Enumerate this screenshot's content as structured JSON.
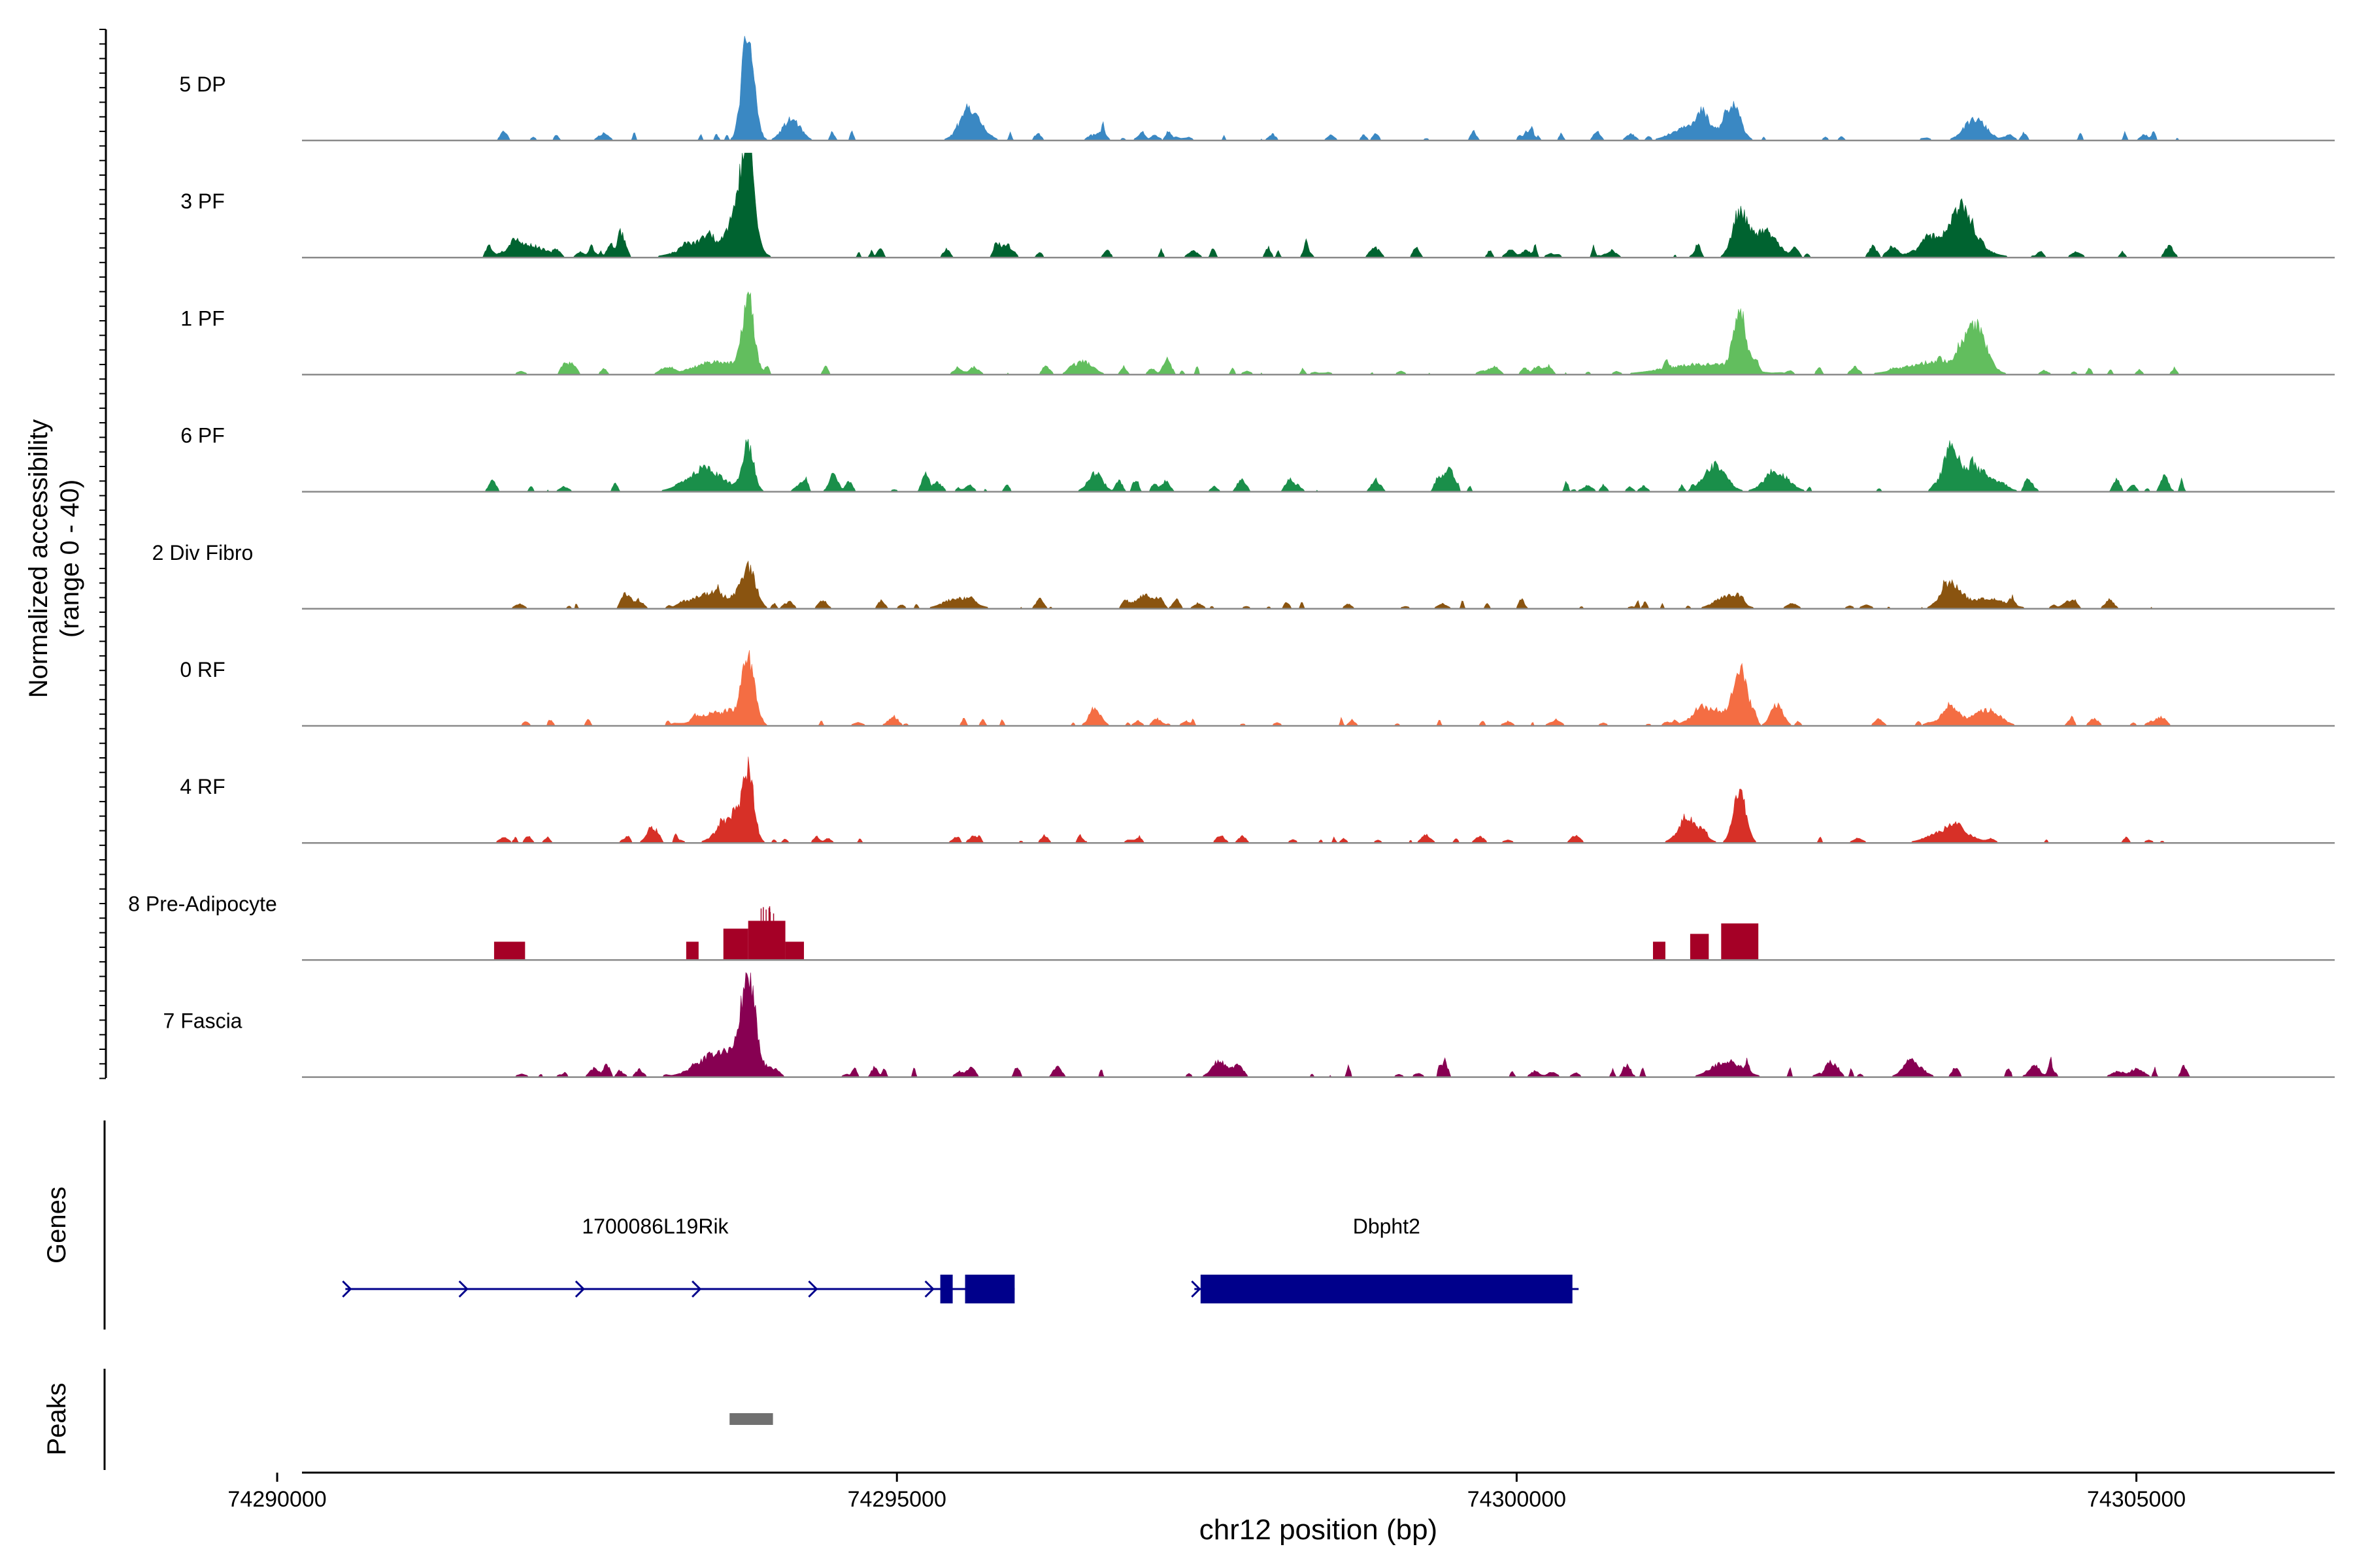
{
  "chart_data": {
    "type": "area",
    "title": "",
    "ylabel_line1": "Normalized accessibility",
    "ylabel_line2": "(range 0 - 40)",
    "xlabel": "chr12 position (bp)",
    "xlim": [
      74290200,
      74306600
    ],
    "ylim": [
      0,
      40
    ],
    "xticks": [
      {
        "value": 74290000,
        "label": "74290000"
      },
      {
        "value": 74295000,
        "label": "74295000"
      },
      {
        "value": 74300000,
        "label": "74300000"
      },
      {
        "value": 74305000,
        "label": "74305000"
      }
    ],
    "tracks": [
      {
        "name": "5 DP",
        "color": "#3A88C3",
        "noise": 0.18,
        "seed": 11,
        "peaks": [
          [
            74293800,
            38,
            50
          ],
          [
            74294150,
            8,
            70
          ],
          [
            74295600,
            10,
            90
          ],
          [
            74301750,
            12,
            60
          ],
          [
            74301450,
            7,
            150
          ],
          [
            74303700,
            8,
            90
          ]
        ]
      },
      {
        "name": "3 PF",
        "color": "#006330",
        "noise": 0.22,
        "seed": 23,
        "peaks": [
          [
            74293800,
            28,
            45
          ],
          [
            74293750,
            20,
            80
          ],
          [
            74293500,
            6,
            200
          ],
          [
            74302000,
            10,
            100
          ],
          [
            74301800,
            15,
            60
          ],
          [
            74303600,
            12,
            80
          ],
          [
            74303500,
            8,
            200
          ],
          [
            74292000,
            5,
            150
          ]
        ]
      },
      {
        "name": "1 PF",
        "color": "#62BE5E",
        "noise": 0.16,
        "seed": 37,
        "peaks": [
          [
            74293800,
            28,
            45
          ],
          [
            74293550,
            5,
            180
          ],
          [
            74301800,
            22,
            50
          ],
          [
            74301500,
            4,
            300
          ],
          [
            74303700,
            17,
            80
          ],
          [
            74303400,
            5,
            250
          ],
          [
            74296500,
            5,
            80
          ]
        ]
      },
      {
        "name": "6 PF",
        "color": "#1A8F4A",
        "noise": 0.24,
        "seed": 41,
        "peaks": [
          [
            74293800,
            17,
            45
          ],
          [
            74293450,
            8,
            150
          ],
          [
            74296600,
            7,
            60
          ],
          [
            74301600,
            10,
            90
          ],
          [
            74302100,
            7,
            100
          ],
          [
            74303500,
            14,
            60
          ],
          [
            74303700,
            7,
            150
          ]
        ]
      },
      {
        "name": "2 Div Fibro",
        "color": "#8A5410",
        "noise": 0.16,
        "seed": 53,
        "peaks": [
          [
            74293800,
            15,
            60
          ],
          [
            74293500,
            6,
            150
          ],
          [
            74295500,
            4,
            120
          ],
          [
            74297000,
            5,
            80
          ],
          [
            74301700,
            5,
            100
          ],
          [
            74303500,
            9,
            80
          ],
          [
            74303800,
            4,
            150
          ]
        ]
      },
      {
        "name": "0 RF",
        "color": "#F46D43",
        "noise": 0.14,
        "seed": 67,
        "peaks": [
          [
            74293800,
            26,
            50
          ],
          [
            74293550,
            5,
            150
          ],
          [
            74296600,
            6,
            50
          ],
          [
            74301800,
            22,
            55
          ],
          [
            74301550,
            7,
            120
          ],
          [
            74302100,
            8,
            50
          ],
          [
            74303500,
            8,
            70
          ],
          [
            74303800,
            6,
            100
          ]
        ]
      },
      {
        "name": "4 RF",
        "color": "#D73027",
        "noise": 0.15,
        "seed": 79,
        "peaks": [
          [
            74293800,
            26,
            45
          ],
          [
            74293650,
            8,
            100
          ],
          [
            74301800,
            20,
            50
          ],
          [
            74301400,
            8,
            90
          ],
          [
            74303500,
            5,
            150
          ]
        ]
      },
      {
        "name": "8 Pre-Adipocyte",
        "color": "#A50026",
        "noise": 0.0,
        "seed": 83,
        "blocks": [
          [
            74291750,
            74292000,
            7
          ],
          [
            74293300,
            74293400,
            7
          ],
          [
            74293600,
            74293800,
            12
          ],
          [
            74293800,
            74294100,
            15
          ],
          [
            74294100,
            74294250,
            7
          ],
          [
            74301100,
            74301200,
            7
          ],
          [
            74301400,
            74301550,
            10
          ],
          [
            74301650,
            74301950,
            14
          ]
        ]
      },
      {
        "name": "7 Fascia",
        "color": "#870052",
        "noise": 0.22,
        "seed": 97,
        "peaks": [
          [
            74293800,
            34,
            55
          ],
          [
            74293600,
            10,
            180
          ],
          [
            74297600,
            6,
            60
          ],
          [
            74301700,
            6,
            120
          ],
          [
            74303200,
            5,
            80
          ],
          [
            74305000,
            3,
            60
          ]
        ]
      }
    ],
    "genes": [
      {
        "name": "1700086L19Rik",
        "color": "#00008B",
        "start": 74290550,
        "end": 74295950,
        "exons": [
          [
            74295350,
            74295450
          ],
          [
            74295550,
            74295950
          ]
        ],
        "label_pos": 74293050
      },
      {
        "name": "Dbpht2",
        "color": "#00008B",
        "start": 74297400,
        "end": 74300500,
        "exons": [
          [
            74297450,
            74300450
          ]
        ],
        "label_pos": 74298950
      }
    ],
    "peaks_track": [
      {
        "start": 74293650,
        "end": 74294000,
        "color": "#707070"
      }
    ],
    "panel_labels": {
      "genes": "Genes",
      "peaks": "Peaks"
    }
  }
}
